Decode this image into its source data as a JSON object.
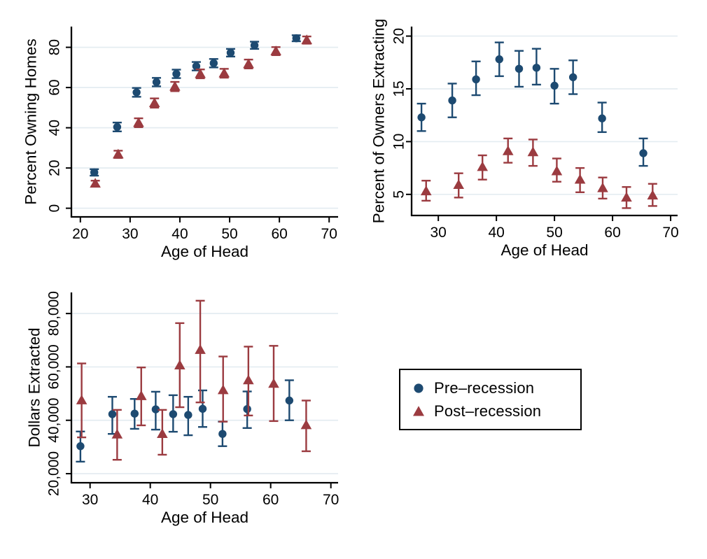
{
  "figure": {
    "background": "#ffffff",
    "grid_color": "#e4ecf1",
    "axis_color": "#000000",
    "legend": {
      "position": "bottom-right-panel",
      "items": [
        {
          "label": "Pre–recession",
          "marker": "circle",
          "color": "#1d4a71"
        },
        {
          "label": "Post–recession",
          "marker": "triangle",
          "color": "#9b3b40"
        }
      ]
    }
  },
  "chart_data": [
    {
      "id": "percent-owning-homes",
      "type": "scatter",
      "title": "",
      "xlabel": "Age of Head",
      "ylabel": "Percent Owning Homes",
      "xlim": [
        18.2,
        71.8
      ],
      "ylim": [
        -4.3,
        90.3
      ],
      "xticks": [
        20,
        30,
        40,
        50,
        60,
        70
      ],
      "xtick_labels": [
        "20",
        "30",
        "40",
        "50",
        "60",
        "70"
      ],
      "yticks": [
        0,
        20,
        40,
        60,
        80
      ],
      "ytick_labels": [
        "0",
        "20",
        "40",
        "60",
        "80"
      ],
      "grid": true,
      "error_bars": true,
      "series": [
        {
          "name": "Pre-recession",
          "marker": "circle",
          "color": "#1d4a71",
          "points": [
            {
              "x": 22.8,
              "y": 17.8,
              "lo": 16.2,
              "hi": 19.4
            },
            {
              "x": 27.4,
              "y": 40.4,
              "lo": 38.2,
              "hi": 42.6
            },
            {
              "x": 31.3,
              "y": 57.6,
              "lo": 55.4,
              "hi": 59.8
            },
            {
              "x": 35.3,
              "y": 62.7,
              "lo": 60.6,
              "hi": 64.8
            },
            {
              "x": 39.3,
              "y": 66.8,
              "lo": 64.7,
              "hi": 68.9
            },
            {
              "x": 43.3,
              "y": 70.6,
              "lo": 68.5,
              "hi": 72.7
            },
            {
              "x": 46.8,
              "y": 72.1,
              "lo": 70.0,
              "hi": 74.2
            },
            {
              "x": 50.2,
              "y": 77.3,
              "lo": 75.4,
              "hi": 79.2
            },
            {
              "x": 55.0,
              "y": 81.0,
              "lo": 79.2,
              "hi": 82.8
            },
            {
              "x": 63.4,
              "y": 84.5,
              "lo": 83.0,
              "hi": 86.0
            }
          ]
        },
        {
          "name": "Post-recession",
          "marker": "triangle",
          "color": "#9b3b40",
          "points": [
            {
              "x": 23.0,
              "y": 12.3,
              "lo": 10.9,
              "hi": 13.7
            },
            {
              "x": 27.6,
              "y": 26.8,
              "lo": 25.0,
              "hi": 28.6
            },
            {
              "x": 31.7,
              "y": 42.5,
              "lo": 40.3,
              "hi": 44.7
            },
            {
              "x": 34.9,
              "y": 52.3,
              "lo": 50.0,
              "hi": 54.6
            },
            {
              "x": 39.0,
              "y": 60.5,
              "lo": 58.2,
              "hi": 62.8
            },
            {
              "x": 44.1,
              "y": 66.8,
              "lo": 64.6,
              "hi": 69.0
            },
            {
              "x": 48.9,
              "y": 67.1,
              "lo": 64.9,
              "hi": 69.3
            },
            {
              "x": 53.8,
              "y": 71.7,
              "lo": 69.5,
              "hi": 73.9
            },
            {
              "x": 59.3,
              "y": 78.1,
              "lo": 76.1,
              "hi": 80.1
            },
            {
              "x": 65.5,
              "y": 83.6,
              "lo": 81.8,
              "hi": 85.4
            }
          ]
        }
      ]
    },
    {
      "id": "percent-of-owners-extracting",
      "type": "scatter",
      "title": "",
      "xlabel": "Age of Head",
      "ylabel": "Percent of Owners Extracting",
      "xlim": [
        25.4,
        71.2
      ],
      "ylim": [
        3.0,
        20.9
      ],
      "xticks": [
        30,
        40,
        50,
        60,
        70
      ],
      "xtick_labels": [
        "30",
        "40",
        "50",
        "60",
        "70"
      ],
      "yticks": [
        5,
        10,
        15,
        20
      ],
      "ytick_labels": [
        "5",
        "10",
        "15",
        "20"
      ],
      "grid": true,
      "error_bars": true,
      "series": [
        {
          "name": "Pre-recession",
          "marker": "circle",
          "color": "#1d4a71",
          "points": [
            {
              "x": 27.1,
              "y": 12.3,
              "lo": 11.0,
              "hi": 13.6
            },
            {
              "x": 32.4,
              "y": 13.9,
              "lo": 12.3,
              "hi": 15.5
            },
            {
              "x": 36.5,
              "y": 15.9,
              "lo": 14.4,
              "hi": 17.6
            },
            {
              "x": 40.5,
              "y": 17.8,
              "lo": 16.2,
              "hi": 19.4
            },
            {
              "x": 43.9,
              "y": 16.9,
              "lo": 15.2,
              "hi": 18.6
            },
            {
              "x": 46.9,
              "y": 17.0,
              "lo": 15.4,
              "hi": 18.8
            },
            {
              "x": 50.0,
              "y": 15.3,
              "lo": 13.6,
              "hi": 16.9
            },
            {
              "x": 53.2,
              "y": 16.1,
              "lo": 14.5,
              "hi": 17.7
            },
            {
              "x": 58.2,
              "y": 12.2,
              "lo": 10.9,
              "hi": 13.7
            },
            {
              "x": 65.3,
              "y": 8.9,
              "lo": 7.7,
              "hi": 10.3
            }
          ]
        },
        {
          "name": "Post-recession",
          "marker": "triangle",
          "color": "#9b3b40",
          "points": [
            {
              "x": 27.9,
              "y": 5.3,
              "lo": 4.4,
              "hi": 6.3
            },
            {
              "x": 33.5,
              "y": 5.9,
              "lo": 4.7,
              "hi": 7.0
            },
            {
              "x": 37.6,
              "y": 7.6,
              "lo": 6.4,
              "hi": 8.7
            },
            {
              "x": 42.0,
              "y": 9.1,
              "lo": 8.0,
              "hi": 10.3
            },
            {
              "x": 46.3,
              "y": 9.0,
              "lo": 7.7,
              "hi": 10.2
            },
            {
              "x": 50.4,
              "y": 7.2,
              "lo": 6.2,
              "hi": 8.4
            },
            {
              "x": 54.4,
              "y": 6.4,
              "lo": 5.2,
              "hi": 7.5
            },
            {
              "x": 58.3,
              "y": 5.6,
              "lo": 4.6,
              "hi": 6.6
            },
            {
              "x": 62.4,
              "y": 4.7,
              "lo": 3.7,
              "hi": 5.7
            },
            {
              "x": 66.9,
              "y": 4.9,
              "lo": 3.9,
              "hi": 6.0
            }
          ]
        }
      ]
    },
    {
      "id": "dollars-extracted",
      "type": "scatter",
      "title": "",
      "xlabel": "Age of Head",
      "ylabel": "Dollars Extracted",
      "xlim": [
        26.9,
        71.2
      ],
      "ylim": [
        16600,
        87900
      ],
      "xticks": [
        30,
        40,
        50,
        60,
        70
      ],
      "xtick_labels": [
        "30",
        "40",
        "50",
        "60",
        "70"
      ],
      "yticks": [
        20000,
        40000,
        60000,
        80000
      ],
      "ytick_labels": [
        "20,000",
        "40,000",
        "60,000",
        "80,000"
      ],
      "grid": true,
      "error_bars": true,
      "series": [
        {
          "name": "Pre-recession",
          "marker": "circle",
          "color": "#1d4a71",
          "points": [
            {
              "x": 28.4,
              "y": 30300,
              "lo": 24500,
              "hi": 35800
            },
            {
              "x": 33.7,
              "y": 42300,
              "lo": 34900,
              "hi": 48800
            },
            {
              "x": 37.4,
              "y": 42500,
              "lo": 36800,
              "hi": 48000
            },
            {
              "x": 40.9,
              "y": 44100,
              "lo": 36500,
              "hi": 50700
            },
            {
              "x": 43.8,
              "y": 42300,
              "lo": 35700,
              "hi": 49400
            },
            {
              "x": 46.3,
              "y": 42000,
              "lo": 34400,
              "hi": 48800
            },
            {
              "x": 48.7,
              "y": 44300,
              "lo": 37500,
              "hi": 51200
            },
            {
              "x": 52.0,
              "y": 34900,
              "lo": 30300,
              "hi": 39500
            },
            {
              "x": 56.1,
              "y": 44200,
              "lo": 37100,
              "hi": 50800
            },
            {
              "x": 63.1,
              "y": 47400,
              "lo": 40000,
              "hi": 55000
            }
          ]
        },
        {
          "name": "Post-recession",
          "marker": "triangle",
          "color": "#9b3b40",
          "points": [
            {
              "x": 28.6,
              "y": 47500,
              "lo": 33600,
              "hi": 61300
            },
            {
              "x": 34.5,
              "y": 34700,
              "lo": 25200,
              "hi": 43900
            },
            {
              "x": 38.5,
              "y": 49100,
              "lo": 38100,
              "hi": 59800
            },
            {
              "x": 42.0,
              "y": 34900,
              "lo": 27100,
              "hi": 43900
            },
            {
              "x": 44.9,
              "y": 60600,
              "lo": 44900,
              "hi": 76400
            },
            {
              "x": 48.3,
              "y": 66400,
              "lo": 46700,
              "hi": 84800
            },
            {
              "x": 52.1,
              "y": 51300,
              "lo": 39500,
              "hi": 63900
            },
            {
              "x": 56.3,
              "y": 55000,
              "lo": 41800,
              "hi": 67600
            },
            {
              "x": 60.5,
              "y": 53700,
              "lo": 39700,
              "hi": 67900
            },
            {
              "x": 65.9,
              "y": 38200,
              "lo": 28400,
              "hi": 47400
            }
          ]
        }
      ]
    }
  ]
}
